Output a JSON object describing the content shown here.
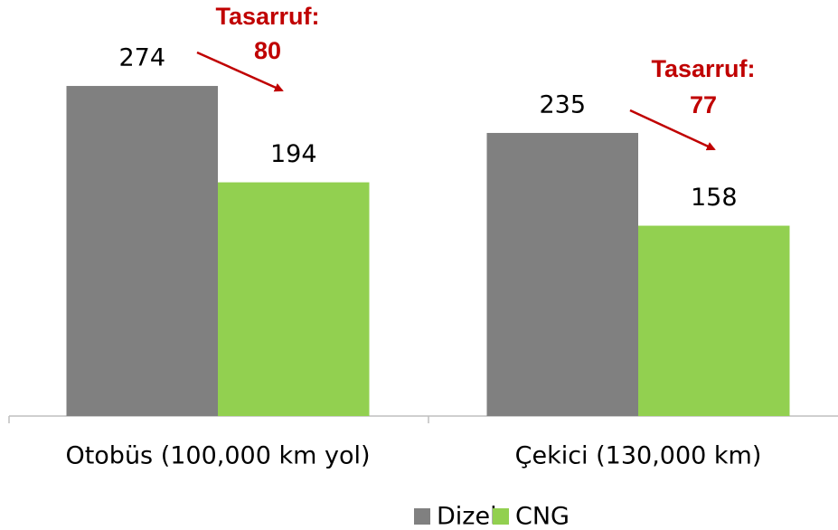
{
  "chart_data": {
    "type": "bar",
    "categories": [
      "Otobüs (100,000 km yol)",
      "Çekici (130,000 km)"
    ],
    "series": [
      {
        "name": "Dizel",
        "color": "#808080",
        "values": [
          274,
          235
        ]
      },
      {
        "name": "CNG",
        "color": "#92d050",
        "values": [
          194,
          158
        ]
      }
    ],
    "ylim": [
      0,
      300
    ],
    "legend": "bottom",
    "annotations": [
      {
        "label": "Tasarruf:",
        "value": 80,
        "color": "#c00000"
      },
      {
        "label": "Tasarruf:",
        "value": 77,
        "color": "#c00000"
      }
    ]
  }
}
